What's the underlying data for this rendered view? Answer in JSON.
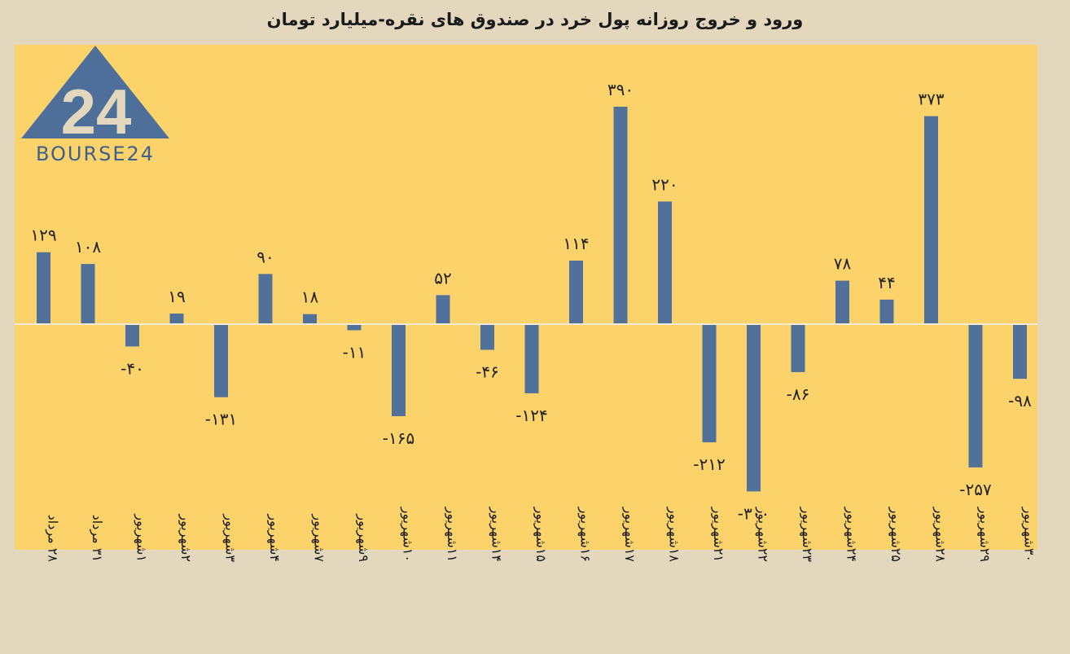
{
  "header": {
    "title": "ورود و خروج روزانه پول خرد در صندوق های نقره-میلیارد تومان"
  },
  "logo": {
    "mark": "24",
    "wordmark": "BOURSE24"
  },
  "colors": {
    "background": "#e3d8bd",
    "plot_background": "#fcd36b",
    "bar": "#52719a",
    "zero_line": "#f4ecd6",
    "logo": "#4d6f99"
  },
  "chart_data": {
    "type": "bar",
    "title": "ورود و خروج روزانه پول خرد در صندوق های نقره-میلیارد تومان",
    "xlabel": "",
    "ylabel": "",
    "grid": false,
    "categories": [
      "۲۸ مرداد",
      "۳۱ مرداد",
      "۱شهریور",
      "۲شهریور",
      "۳شهریور",
      "۴شهریور",
      "۷شهریور",
      "۹شهریور",
      "۱۰شهریور",
      "۱۱شهریور",
      "۱۴شهریور",
      "۱۵شهریور",
      "۱۶شهریور",
      "۱۷شهریور",
      "۱۸شهریور",
      "۲۱شهریور",
      "۲۲شهریور",
      "۲۳شهریور",
      "۲۴شهریور",
      "۲۵شهریور",
      "۲۸شهریور",
      "۲۹شهریور",
      "۳۰شهریور"
    ],
    "values": [
      129,
      108,
      -40,
      19,
      -131,
      90,
      18,
      -11,
      -165,
      52,
      -46,
      -124,
      114,
      390,
      220,
      -212,
      -300,
      -86,
      78,
      44,
      373,
      -257,
      -98
    ],
    "data_labels": [
      "۱۲۹",
      "۱۰۸",
      "-۴۰",
      "۱۹",
      "-۱۳۱",
      "۹۰",
      "۱۸",
      "-۱۱",
      "-۱۶۵",
      "۵۲",
      "-۴۶",
      "-۱۲۴",
      "۱۱۴",
      "۳۹۰",
      "۲۲۰",
      "-۲۱۲",
      "-۳۰۰",
      "-۸۶",
      "۷۸",
      "۴۴",
      "۳۷۳",
      "-۲۵۷",
      "-۹۸"
    ],
    "ylim": [
      -400,
      420
    ]
  }
}
